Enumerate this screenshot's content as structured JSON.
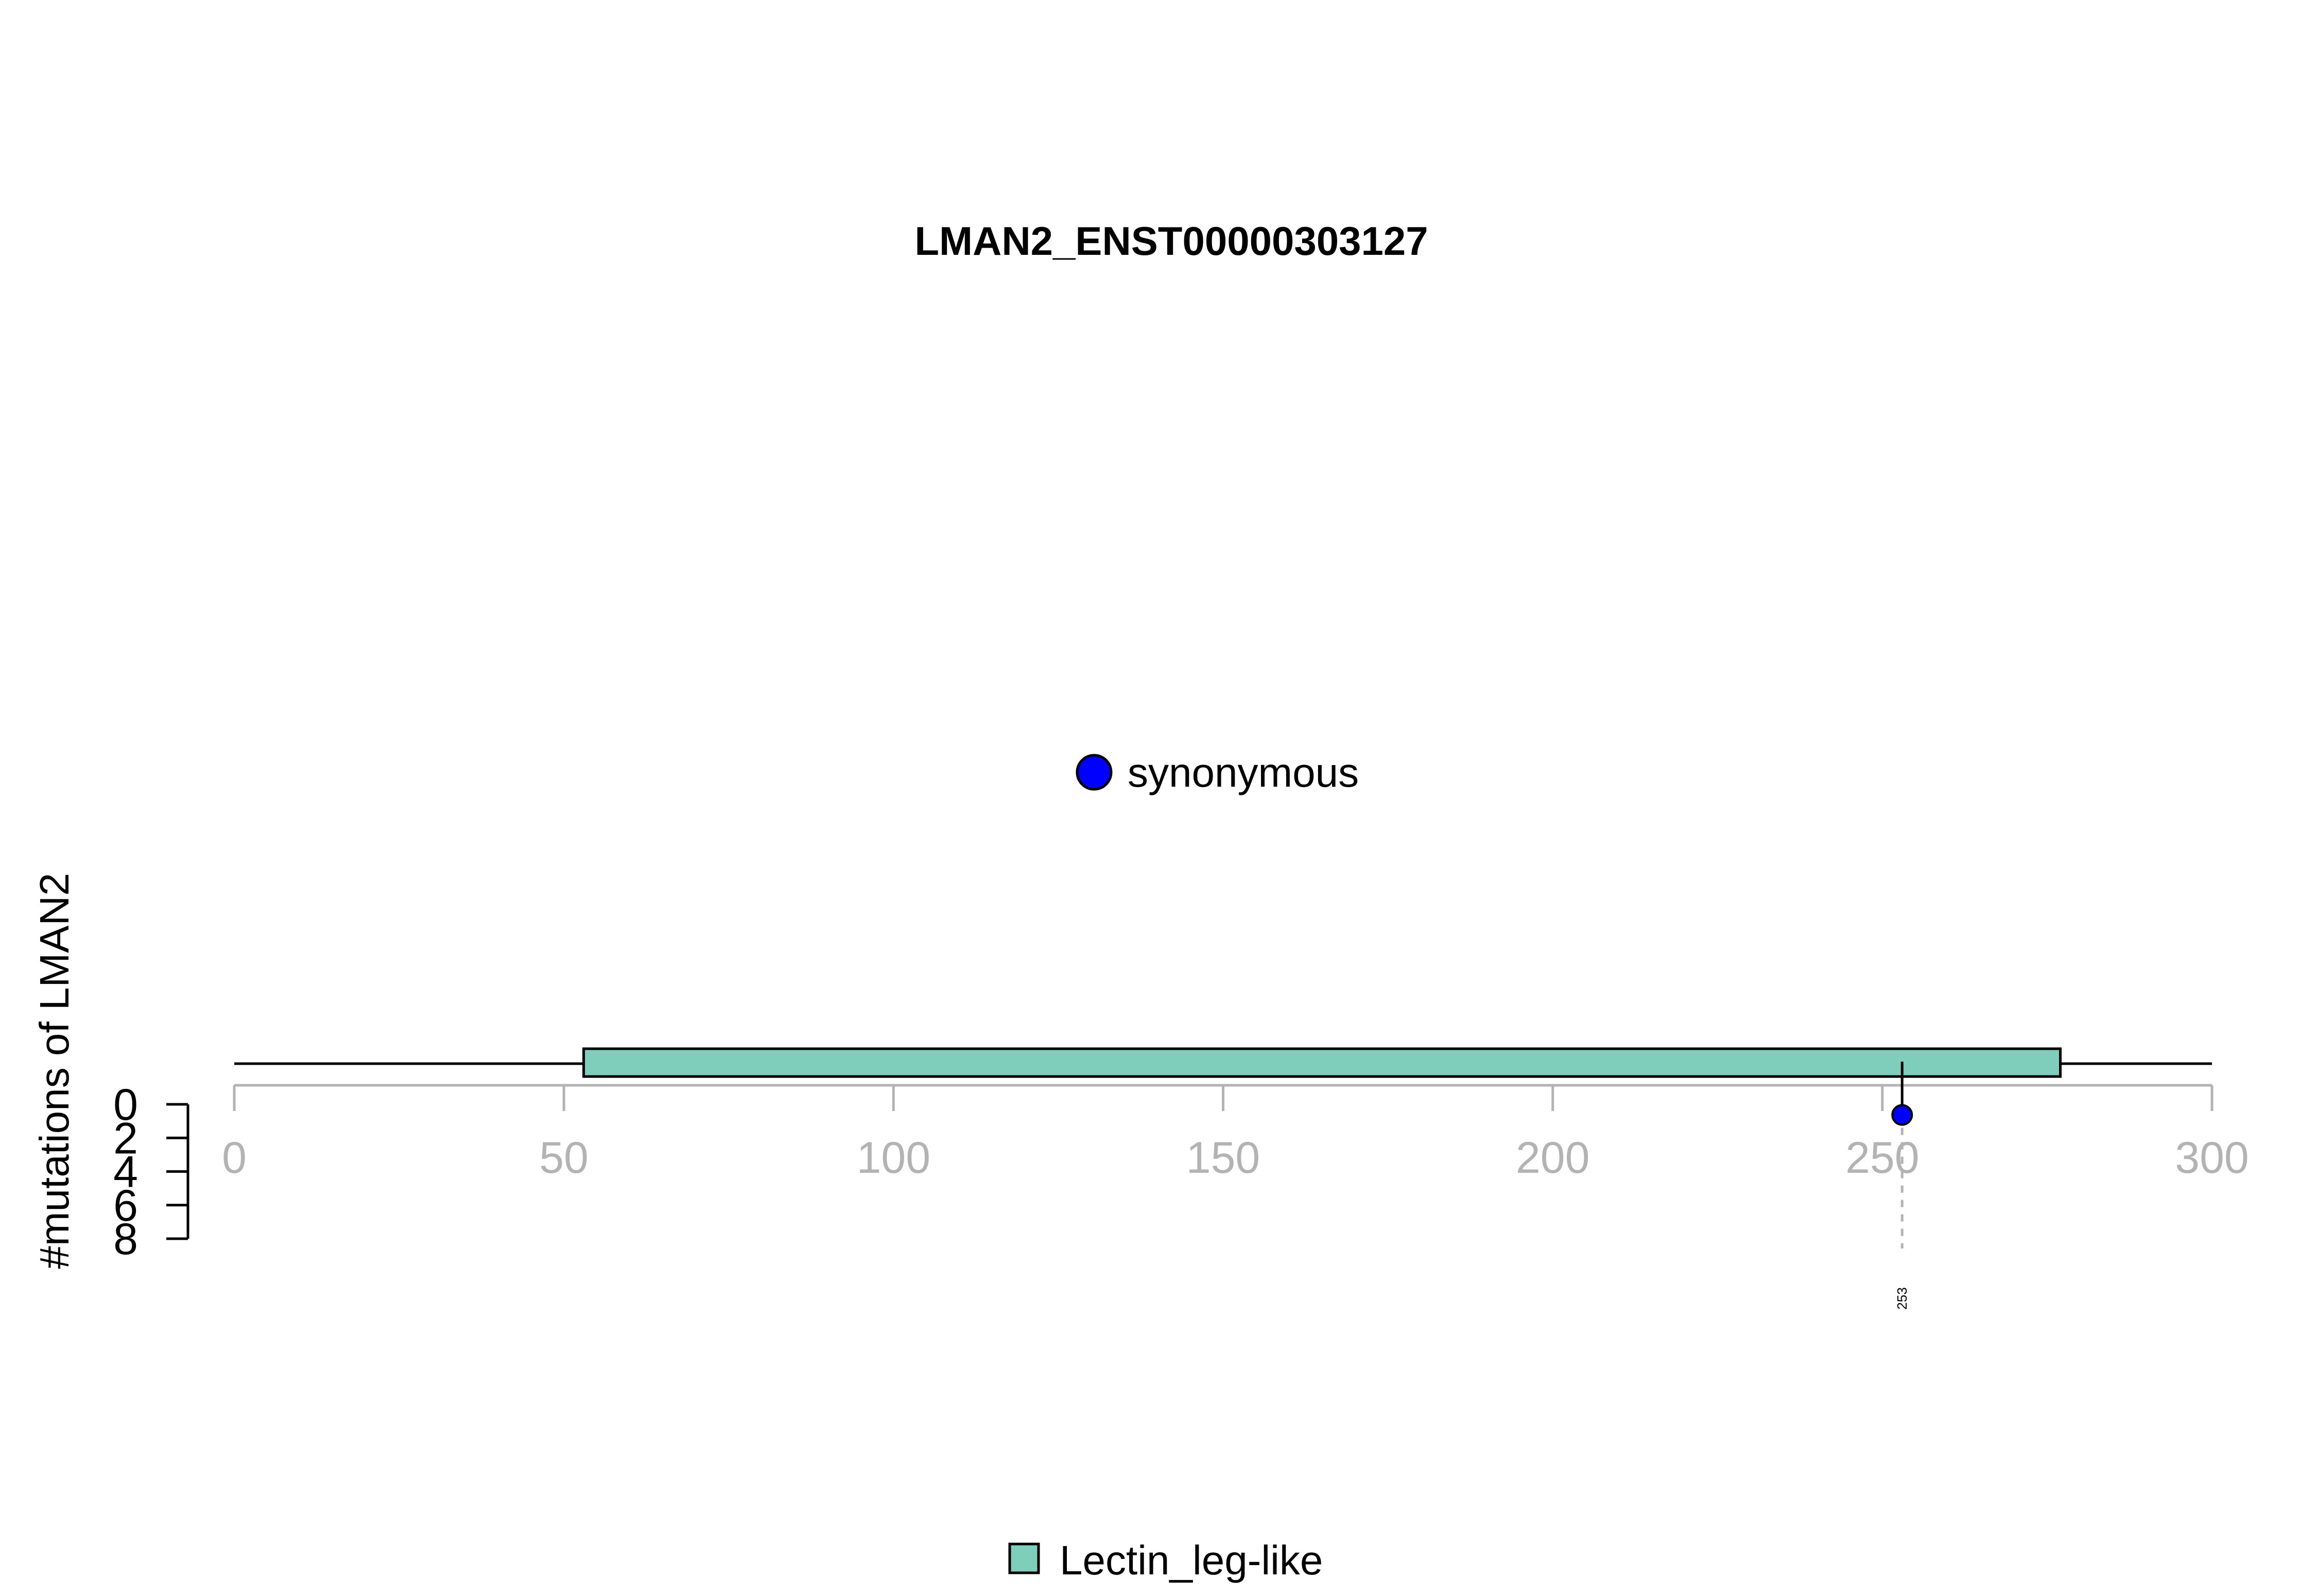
{
  "chart_data": {
    "type": "scatter",
    "title": "LMAN2_ENST00000303127",
    "xlim": [
      0,
      300
    ],
    "x_ticks": [
      0,
      50,
      100,
      150,
      200,
      250,
      300
    ],
    "ylabel": "#mutations of LMAN2",
    "y_ticks": [
      0,
      2,
      4,
      6,
      8
    ],
    "ylim": [
      0,
      8
    ],
    "protein_length": 300,
    "domains": [
      {
        "name": "Lectin_leg-like",
        "start": 53,
        "end": 277,
        "color": "#7fcdbb"
      }
    ],
    "mutations": [
      {
        "position": 253,
        "count": 1,
        "type": "synonymous",
        "label": "253",
        "color": "#0000ff"
      }
    ],
    "mutation_legend": [
      {
        "label": "synonymous",
        "color": "#0000ff"
      }
    ],
    "domain_legend": [
      {
        "label": "Lectin_leg-like",
        "color": "#7fcdbb"
      }
    ],
    "grid": false
  }
}
